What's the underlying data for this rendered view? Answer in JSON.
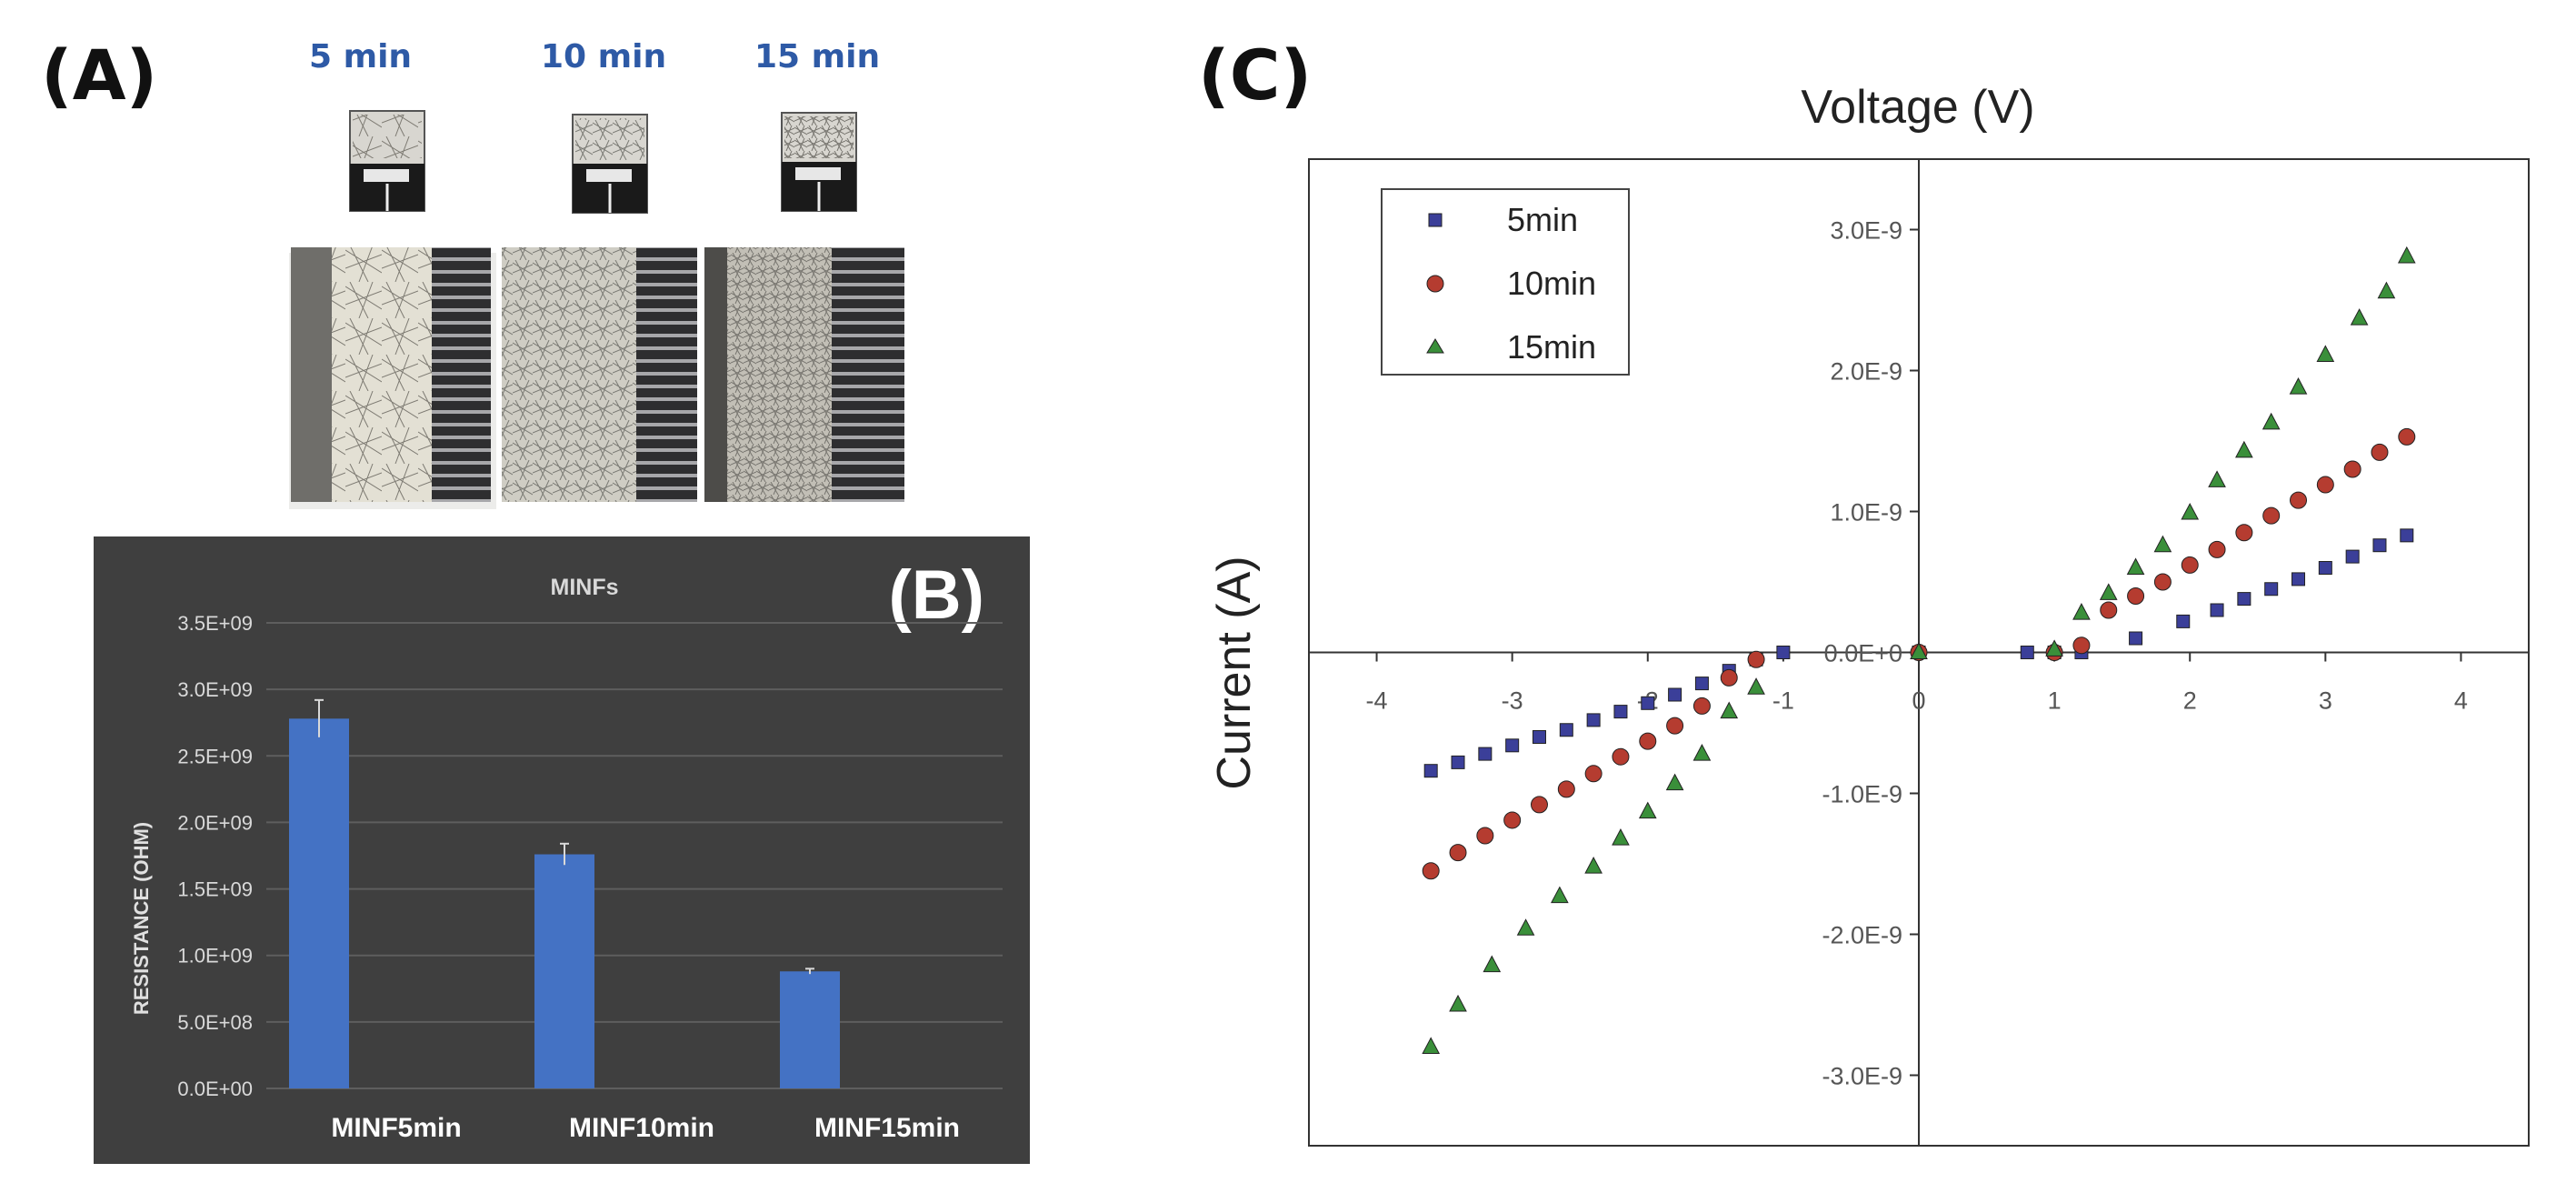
{
  "colors": {
    "time_label": "#2e5aa6",
    "bar": "#4472c4",
    "panel_b_bg": "#3f3f3f",
    "s5": "#3b3f99",
    "s10": "#b53c30",
    "s15": "#3a8f3a"
  },
  "panel_a": {
    "label": "(A)",
    "images": [
      {
        "time": "5 min",
        "icon": "sensor-photo-5min"
      },
      {
        "time": "10 min",
        "icon": "sensor-photo-10min"
      },
      {
        "time": "15 min",
        "icon": "sensor-photo-15min"
      }
    ]
  },
  "panel_c_label": "(C)",
  "chart_data": [
    {
      "type": "bar",
      "panel_label": "(B)",
      "title": "MINFs",
      "xlabel": "",
      "ylabel": "RESISTANCE (OHM)",
      "categories": [
        "MINF5min",
        "MINF10min",
        "MINF15min"
      ],
      "values": [
        2780000000.0,
        1760000000.0,
        880000000.0
      ],
      "errors": [
        140000000.0,
        80000000.0,
        20000000.0
      ],
      "ylim": [
        0,
        3500000000.0
      ],
      "yticks": [
        0,
        500000000.0,
        1000000000.0,
        1500000000.0,
        2000000000.0,
        2500000000.0,
        3000000000.0,
        3500000000.0
      ],
      "ytick_labels": [
        "0.0E+00",
        "5.0E+08",
        "1.0E+09",
        "1.5E+09",
        "2.0E+09",
        "2.5E+09",
        "3.0E+09",
        "3.5E+09"
      ],
      "grid": true
    },
    {
      "type": "scatter",
      "title": "Voltage (V)",
      "xlabel": "Voltage (V)",
      "ylabel": "Current (A)",
      "xlim": [
        -4.5,
        4.5
      ],
      "ylim": [
        -3.5e-09,
        3.5e-09
      ],
      "xticks": [
        -4,
        -3,
        -2,
        -1,
        0,
        1,
        2,
        3,
        4
      ],
      "xtick_labels": [
        "-4",
        "-3",
        "-2",
        "-1",
        "0",
        "1",
        "2",
        "3",
        "4"
      ],
      "yticks": [
        -3e-09,
        -2e-09,
        -1e-09,
        0,
        1e-09,
        2e-09,
        3e-09
      ],
      "ytick_labels": [
        "-3.0E-9",
        "-2.0E-9",
        "-1.0E-9",
        "0.0E+0",
        "1.0E-9",
        "2.0E-9",
        "3.0E-9"
      ],
      "legend_position": "top-left",
      "series": [
        {
          "name": "5min",
          "marker": "square",
          "x": [
            -3.6,
            -3.4,
            -3.2,
            -3.0,
            -2.8,
            -2.6,
            -2.4,
            -2.2,
            -2.0,
            -1.8,
            -1.6,
            -1.4,
            -1.2,
            -1.0,
            0,
            0.8,
            1.0,
            1.2,
            1.6,
            1.95,
            2.2,
            2.4,
            2.6,
            2.8,
            3.0,
            3.2,
            3.4,
            3.6
          ],
          "y": [
            -8.4e-10,
            -7.8e-10,
            -7.2e-10,
            -6.6e-10,
            -6e-10,
            -5.5e-10,
            -4.8e-10,
            -4.2e-10,
            -3.6e-10,
            -3e-10,
            -2.2e-10,
            -1.3e-10,
            -5e-11,
            0,
            0,
            0,
            0,
            0,
            1e-10,
            2.2e-10,
            3e-10,
            3.8e-10,
            4.5e-10,
            5.2e-10,
            6e-10,
            6.8e-10,
            7.6e-10,
            8.3e-10
          ]
        },
        {
          "name": "10min",
          "marker": "circle",
          "x": [
            -3.6,
            -3.4,
            -3.2,
            -3.0,
            -2.8,
            -2.6,
            -2.4,
            -2.2,
            -2.0,
            -1.8,
            -1.6,
            -1.4,
            -1.2,
            0,
            1.0,
            1.2,
            1.4,
            1.6,
            1.8,
            2.0,
            2.2,
            2.4,
            2.6,
            2.8,
            3.0,
            3.2,
            3.4,
            3.6
          ],
          "y": [
            -1.55e-09,
            -1.42e-09,
            -1.3e-09,
            -1.19e-09,
            -1.08e-09,
            -9.7e-10,
            -8.6e-10,
            -7.4e-10,
            -6.3e-10,
            -5.2e-10,
            -3.8e-10,
            -1.8e-10,
            -5e-11,
            0,
            0,
            5e-11,
            3e-10,
            4e-10,
            5e-10,
            6.2e-10,
            7.3e-10,
            8.5e-10,
            9.7e-10,
            1.08e-09,
            1.19e-09,
            1.3e-09,
            1.42e-09,
            1.53e-09
          ]
        },
        {
          "name": "15min",
          "marker": "triangle",
          "x": [
            -3.6,
            -3.4,
            -3.15,
            -2.9,
            -2.65,
            -2.4,
            -2.2,
            -2.0,
            -1.8,
            -1.6,
            -1.4,
            -1.2,
            0,
            1.0,
            1.2,
            1.4,
            1.6,
            1.8,
            2.0,
            2.2,
            2.4,
            2.6,
            2.8,
            3.0,
            3.25,
            3.45,
            3.6
          ],
          "y": [
            -2.8e-09,
            -2.5e-09,
            -2.22e-09,
            -1.96e-09,
            -1.73e-09,
            -1.52e-09,
            -1.32e-09,
            -1.13e-09,
            -9.3e-10,
            -7.2e-10,
            -4.2e-10,
            -2.5e-10,
            0,
            2e-11,
            2.8e-10,
            4.2e-10,
            6e-10,
            7.6e-10,
            9.9e-10,
            1.22e-09,
            1.43e-09,
            1.63e-09,
            1.88e-09,
            2.11e-09,
            2.37e-09,
            2.56e-09,
            2.81e-09
          ]
        }
      ]
    }
  ]
}
